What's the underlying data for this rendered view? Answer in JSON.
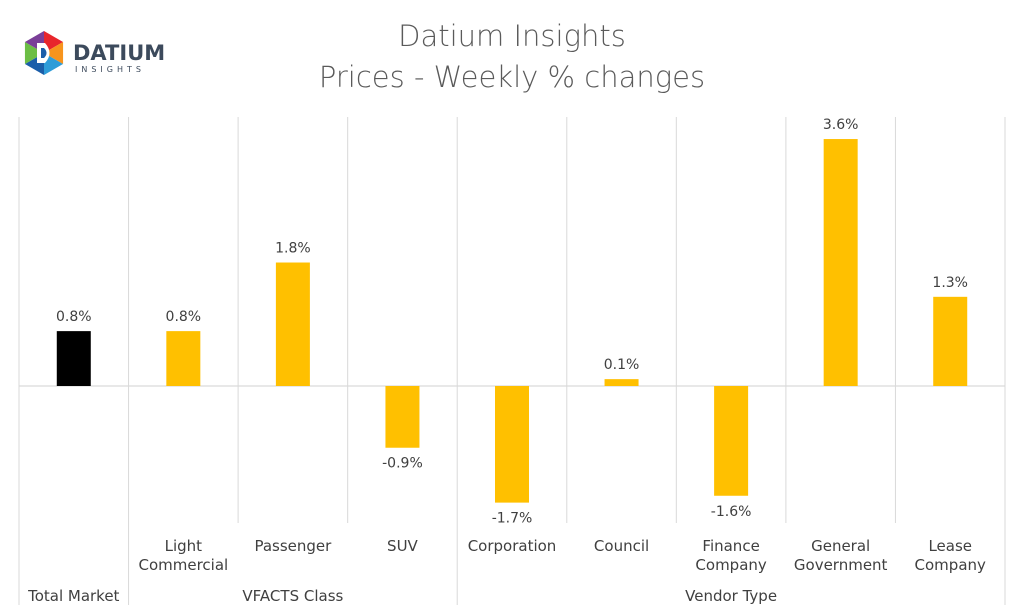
{
  "logo": {
    "word": "DATIUM",
    "sub": "INSIGHTS",
    "colors": [
      "#e8262c",
      "#f7941d",
      "#2e9cd8",
      "#1b5ea9",
      "#6cbe45",
      "#7a3f98"
    ]
  },
  "chart_data": {
    "type": "bar",
    "title": "Datium Insights",
    "subtitle": "Prices - Weekly % changes",
    "xlabel": "",
    "ylabel": "",
    "ylim": [
      -2.2,
      4.0
    ],
    "grid": false,
    "categories": [
      [
        "Total Market"
      ],
      [
        "Light",
        "Commercial"
      ],
      [
        "Passenger"
      ],
      [
        "SUV"
      ],
      [
        "Corporation"
      ],
      [
        "Council"
      ],
      [
        "Finance",
        "Company"
      ],
      [
        "General",
        "Government"
      ],
      [
        "Lease",
        "Company"
      ]
    ],
    "values": [
      0.8,
      0.8,
      1.8,
      -0.9,
      -1.7,
      0.1,
      -1.6,
      3.6,
      1.3
    ],
    "value_labels": [
      "0.8%",
      "0.8%",
      "1.8%",
      "-0.9%",
      "-1.7%",
      "0.1%",
      "-1.6%",
      "3.6%",
      "1.3%"
    ],
    "bar_colors": [
      "#000000",
      "#ffc000",
      "#ffc000",
      "#ffc000",
      "#ffc000",
      "#ffc000",
      "#ffc000",
      "#ffc000",
      "#ffc000"
    ],
    "groups": [
      {
        "label": "",
        "start": 0,
        "end": 0
      },
      {
        "label": "VFACTS Class",
        "start": 1,
        "end": 3
      },
      {
        "label": "Vendor Type",
        "start": 4,
        "end": 8
      }
    ],
    "axis_color": "#d9d9d9"
  }
}
